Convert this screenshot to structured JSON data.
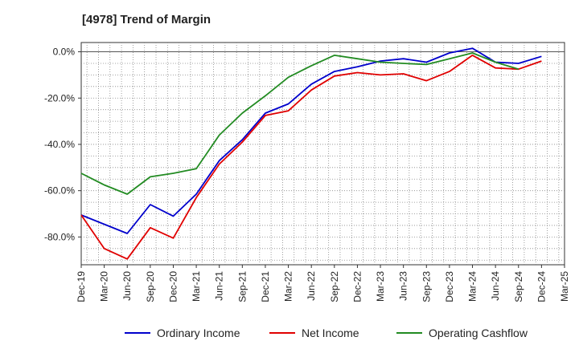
{
  "chart_data": {
    "type": "line",
    "title": "[4978]  Trend of Margin",
    "xlabel": "",
    "ylabel": "",
    "x_ticks": [
      "Dec-19",
      "Mar-20",
      "Jun-20",
      "Sep-20",
      "Dec-20",
      "Mar-21",
      "Jun-21",
      "Sep-21",
      "Dec-21",
      "Mar-22",
      "Jun-22",
      "Sep-22",
      "Dec-22",
      "Mar-23",
      "Jun-23",
      "Sep-23",
      "Dec-23",
      "Mar-24",
      "Jun-24",
      "Sep-24",
      "Dec-24",
      "Mar-25"
    ],
    "y_ticks": [
      "0.0%",
      "-20.0%",
      "-40.0%",
      "-60.0%",
      "-80.0%"
    ],
    "y_tick_values": [
      0,
      -20,
      -40,
      -60,
      -80
    ],
    "ylim": [
      -92,
      4
    ],
    "grid": true,
    "legend_position": "bottom",
    "series": [
      {
        "name": "Ordinary Income",
        "color": "#0000cc",
        "values": [
          -70.5,
          -74.5,
          -78.5,
          -66,
          -71,
          -61.5,
          -47,
          -38,
          -26.5,
          -22.5,
          -14,
          -8.5,
          -6.5,
          -4,
          -3,
          -4.5,
          -0.5,
          1.5,
          -4.5,
          -5,
          -2
        ]
      },
      {
        "name": "Net Income",
        "color": "#e00000",
        "values": [
          -70.5,
          -85,
          -89.5,
          -76,
          -80.5,
          -63,
          -48.5,
          -39,
          -27.5,
          -25.5,
          -16.5,
          -10.5,
          -9,
          -10,
          -9.5,
          -12.5,
          -8.5,
          -1.5,
          -7,
          -7.5,
          -4
        ]
      },
      {
        "name": "Operating Cashflow",
        "color": "#228b22",
        "values": [
          -52.5,
          -57.5,
          -61.5,
          -54,
          -52.5,
          -50.5,
          -36,
          -26.5,
          -19,
          -11,
          -6,
          -1.5,
          -3,
          -4.5,
          -5,
          -5.5,
          -3,
          -0.5,
          -4.5,
          -7.5,
          null
        ]
      }
    ]
  }
}
